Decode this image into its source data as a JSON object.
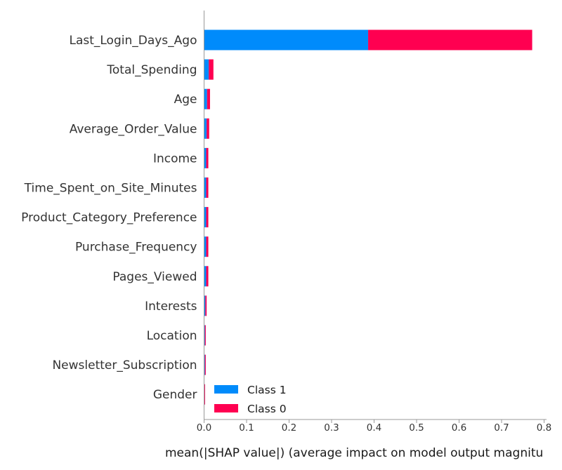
{
  "chart_data": {
    "type": "bar",
    "orientation": "horizontal",
    "stacked": true,
    "categories": [
      "Last_Login_Days_Ago",
      "Total_Spending",
      "Age",
      "Average_Order_Value",
      "Income",
      "Time_Spent_on_Site_Minutes",
      "Product_Category_Preference",
      "Purchase_Frequency",
      "Pages_Viewed",
      "Interests",
      "Location",
      "Newsletter_Subscription",
      "Gender"
    ],
    "series": [
      {
        "name": "Class 1",
        "color": "#008bfb",
        "values": [
          0.386,
          0.011,
          0.007,
          0.006,
          0.005,
          0.005,
          0.005,
          0.005,
          0.005,
          0.003,
          0.002,
          0.002,
          0.001
        ]
      },
      {
        "name": "Class 0",
        "color": "#ff0051",
        "values": [
          0.386,
          0.011,
          0.007,
          0.006,
          0.005,
          0.005,
          0.005,
          0.005,
          0.005,
          0.003,
          0.002,
          0.002,
          0.001
        ]
      }
    ],
    "legend_order": [
      "Class 1",
      "Class 0"
    ],
    "xlabel": "mean(|SHAP value|) (average impact on model output magnitu",
    "xlim": [
      0,
      0.8
    ],
    "xticks": [
      "0.0",
      "0.1",
      "0.2",
      "0.3",
      "0.4",
      "0.5",
      "0.6",
      "0.7",
      "0.8"
    ],
    "grid": false,
    "legend_position": "bottom-center",
    "colors": {
      "axis": "#999999",
      "text": "#333333"
    }
  }
}
